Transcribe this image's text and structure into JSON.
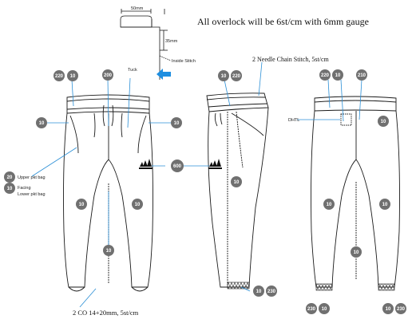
{
  "header_note": "All overlock will be 6st/cm with 6mm gauge",
  "detail": {
    "waistband_width": "50mm",
    "tuck_depth": "35mm",
    "inside_stitch": "Inside Stitch"
  },
  "callouts": {
    "tuck": "Tuck",
    "chain_stitch": "2 Needle Chain Stitch, 5st/cm",
    "dhtl": "DHTL",
    "upper_pkt_bag": "Upper pkt bag",
    "facing": "Facing",
    "lower_pkt_bag": "Lower pkt bag",
    "bottom_note": "2 CO 14+20mm, 5st/cm"
  },
  "codes": {
    "c220": "220",
    "c10": "10",
    "c200": "200",
    "c210": "210",
    "c230": "230",
    "c20": "20",
    "c600": "600"
  },
  "colors": {
    "line": "#1a1a1a",
    "badge_fill": "#707070",
    "leader": "#2b8fd6",
    "arrow": "#1e8ee0"
  }
}
